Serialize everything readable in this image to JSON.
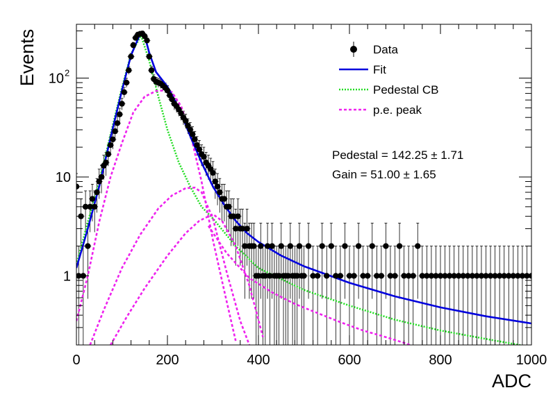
{
  "chart_data": {
    "type": "line",
    "xlabel": "ADC",
    "ylabel": "Events",
    "xlim": [
      0,
      1000
    ],
    "ylim": [
      0.2,
      350
    ],
    "log_y": true,
    "x_ticks": [
      0,
      200,
      400,
      600,
      800,
      1000
    ],
    "y_ticks": [
      {
        "value": 1,
        "label": "1"
      },
      {
        "value": 10,
        "label": "10"
      },
      {
        "value": 100,
        "label": "10",
        "sup": "2"
      }
    ],
    "legend_position": "top-right",
    "legend": [
      {
        "label": "Data",
        "kind": "marker",
        "color": "#000000"
      },
      {
        "label": "Fit",
        "kind": "solid",
        "color": "#0000dd"
      },
      {
        "label": "Pedestal CB",
        "kind": "dotted",
        "color": "#22dd22"
      },
      {
        "label": "p.e. peak",
        "kind": "dashed",
        "color": "#ee22ee"
      }
    ],
    "annotations": [
      {
        "text": "Pedestal = 142.25 ± 1.71"
      },
      {
        "text": "Gain = 51.00 ± 1.65"
      }
    ],
    "data_points": [
      [
        0,
        8
      ],
      [
        5,
        1
      ],
      [
        10,
        4
      ],
      [
        15,
        1
      ],
      [
        20,
        5
      ],
      [
        25,
        2
      ],
      [
        30,
        5
      ],
      [
        35,
        6
      ],
      [
        40,
        5
      ],
      [
        45,
        7
      ],
      [
        50,
        9
      ],
      [
        55,
        10
      ],
      [
        60,
        13
      ],
      [
        65,
        14
      ],
      [
        70,
        17
      ],
      [
        75,
        21
      ],
      [
        80,
        24
      ],
      [
        85,
        29
      ],
      [
        90,
        35
      ],
      [
        95,
        43
      ],
      [
        100,
        55
      ],
      [
        105,
        72
      ],
      [
        110,
        90
      ],
      [
        115,
        120
      ],
      [
        120,
        165
      ],
      [
        125,
        215
      ],
      [
        130,
        255
      ],
      [
        135,
        275
      ],
      [
        140,
        280
      ],
      [
        145,
        282
      ],
      [
        150,
        265
      ],
      [
        155,
        240
      ],
      [
        160,
        165
      ],
      [
        165,
        120
      ],
      [
        170,
        98
      ],
      [
        175,
        92
      ],
      [
        180,
        90
      ],
      [
        185,
        88
      ],
      [
        190,
        84
      ],
      [
        195,
        80
      ],
      [
        200,
        75
      ],
      [
        205,
        67
      ],
      [
        210,
        61
      ],
      [
        215,
        55
      ],
      [
        220,
        52
      ],
      [
        225,
        48
      ],
      [
        230,
        44
      ],
      [
        235,
        40
      ],
      [
        240,
        37
      ],
      [
        245,
        33
      ],
      [
        250,
        30
      ],
      [
        255,
        27
      ],
      [
        260,
        24
      ],
      [
        265,
        21
      ],
      [
        270,
        19
      ],
      [
        275,
        17
      ],
      [
        280,
        16
      ],
      [
        285,
        14
      ],
      [
        290,
        13
      ],
      [
        295,
        12
      ],
      [
        300,
        11
      ],
      [
        305,
        9
      ],
      [
        310,
        8
      ],
      [
        315,
        7
      ],
      [
        320,
        6
      ],
      [
        325,
        6
      ],
      [
        330,
        5
      ],
      [
        335,
        5
      ],
      [
        340,
        4
      ],
      [
        345,
        4
      ],
      [
        350,
        3
      ],
      [
        355,
        4
      ],
      [
        360,
        3
      ],
      [
        365,
        3
      ],
      [
        370,
        2
      ],
      [
        375,
        3
      ],
      [
        380,
        2
      ],
      [
        385,
        2
      ],
      [
        390,
        2
      ],
      [
        395,
        1
      ],
      [
        400,
        1
      ],
      [
        405,
        2
      ],
      [
        410,
        1
      ],
      [
        415,
        1
      ],
      [
        420,
        2
      ],
      [
        425,
        1
      ],
      [
        430,
        2
      ],
      [
        435,
        1
      ],
      [
        440,
        1
      ],
      [
        445,
        1
      ],
      [
        450,
        2
      ],
      [
        455,
        1
      ],
      [
        460,
        1
      ],
      [
        465,
        1
      ],
      [
        470,
        2
      ],
      [
        475,
        1
      ],
      [
        480,
        1
      ],
      [
        485,
        1
      ],
      [
        490,
        2
      ],
      [
        495,
        1
      ],
      [
        500,
        1
      ],
      [
        510,
        2
      ],
      [
        520,
        1
      ],
      [
        530,
        1
      ],
      [
        540,
        2
      ],
      [
        550,
        1
      ],
      [
        560,
        2
      ],
      [
        570,
        1
      ],
      [
        580,
        1
      ],
      [
        590,
        2
      ],
      [
        600,
        1
      ],
      [
        610,
        1
      ],
      [
        620,
        2
      ],
      [
        630,
        1
      ],
      [
        640,
        1
      ],
      [
        650,
        2
      ],
      [
        660,
        1
      ],
      [
        670,
        1
      ],
      [
        680,
        2
      ],
      [
        690,
        1
      ],
      [
        700,
        1
      ],
      [
        710,
        2
      ],
      [
        720,
        1
      ],
      [
        730,
        1
      ],
      [
        740,
        1
      ],
      [
        750,
        2
      ],
      [
        760,
        1
      ],
      [
        770,
        1
      ],
      [
        780,
        1
      ],
      [
        790,
        1
      ],
      [
        800,
        1
      ],
      [
        810,
        1
      ],
      [
        820,
        1
      ],
      [
        830,
        1
      ],
      [
        840,
        1
      ],
      [
        850,
        1
      ],
      [
        860,
        1
      ],
      [
        870,
        1
      ],
      [
        880,
        1
      ],
      [
        890,
        1
      ],
      [
        900,
        1
      ],
      [
        910,
        1
      ],
      [
        920,
        1
      ],
      [
        930,
        1
      ],
      [
        940,
        1
      ],
      [
        950,
        1
      ],
      [
        960,
        1
      ],
      [
        970,
        1
      ],
      [
        980,
        1
      ],
      [
        990,
        1
      ],
      [
        1000,
        1
      ]
    ],
    "series": [
      {
        "name": "Fit",
        "color": "#0000dd",
        "style": "solid",
        "x": [
          0,
          25,
          50,
          75,
          100,
          120,
          140,
          150,
          160,
          175,
          200,
          225,
          250,
          275,
          300,
          325,
          350,
          375,
          400,
          450,
          500,
          600,
          700,
          800,
          900,
          1000
        ],
        "y": [
          1.2,
          3.0,
          8,
          25,
          75,
          170,
          280,
          270,
          180,
          115,
          82,
          50,
          26,
          14,
          8,
          5.2,
          3.6,
          2.7,
          2.2,
          1.6,
          1.25,
          0.85,
          0.62,
          0.48,
          0.39,
          0.33
        ]
      },
      {
        "name": "Pedestal CB",
        "color": "#22dd22",
        "style": "dotted",
        "x": [
          0,
          25,
          50,
          75,
          100,
          120,
          142,
          160,
          180,
          200,
          225,
          250,
          275,
          300,
          350,
          400,
          500,
          600,
          700,
          800,
          900,
          1000
        ],
        "y": [
          1.3,
          3.5,
          9,
          27,
          80,
          175,
          270,
          150,
          65,
          30,
          14,
          8,
          5,
          3.8,
          2.0,
          1.2,
          0.72,
          0.5,
          0.36,
          0.28,
          0.23,
          0.19
        ]
      },
      {
        "name": "",
        "color": "#ee22ee",
        "style": "dashed",
        "x": [
          0,
          25,
          50,
          75,
          100,
          125,
          150,
          175,
          193,
          210,
          230,
          250,
          275,
          300,
          325,
          350
        ],
        "y": [
          0.35,
          1.0,
          3.5,
          10,
          22,
          45,
          65,
          74,
          75,
          72,
          52,
          28,
          9,
          2.3,
          0.7,
          0.22
        ]
      },
      {
        "name": "",
        "color": "#ee22ee",
        "style": "dashed",
        "x": [
          30,
          60,
          100,
          140,
          180,
          210,
          240,
          260,
          275,
          300,
          330,
          360,
          380
        ],
        "y": [
          0.2,
          0.45,
          1.2,
          2.6,
          4.8,
          6.5,
          7.7,
          7.8,
          7.0,
          3.8,
          1.1,
          0.35,
          0.2
        ]
      },
      {
        "name": "",
        "color": "#ee22ee",
        "style": "dashed",
        "x": [
          75,
          110,
          150,
          200,
          240,
          270,
          300,
          320,
          350,
          380,
          410
        ],
        "y": [
          0.2,
          0.38,
          0.75,
          1.6,
          2.7,
          3.6,
          4.2,
          3.6,
          2.0,
          0.8,
          0.24
        ]
      },
      {
        "name": "",
        "color": "#ee22ee",
        "style": "dashed",
        "x": [
          290,
          330,
          380,
          430,
          480,
          530,
          580,
          630,
          680,
          720,
          760
        ],
        "y": [
          3.2,
          1.7,
          0.95,
          0.68,
          0.52,
          0.42,
          0.34,
          0.28,
          0.24,
          0.21,
          0.18
        ]
      }
    ]
  }
}
